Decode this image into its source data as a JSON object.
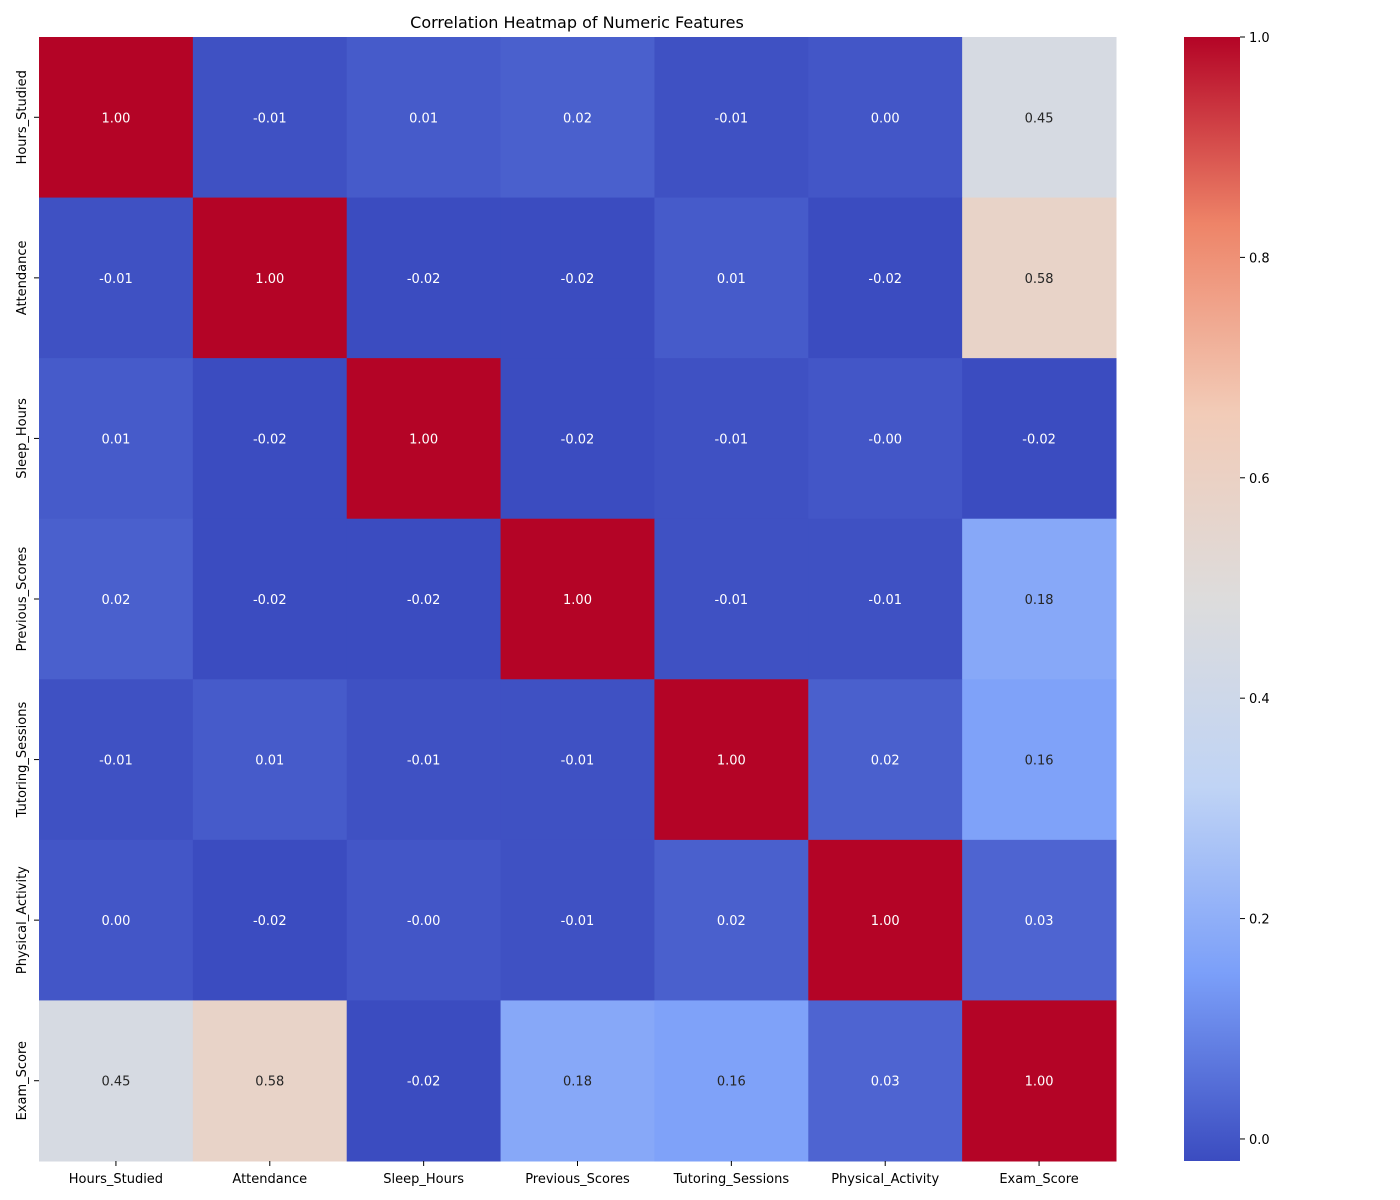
{
  "chart_data": {
    "type": "heatmap",
    "title": "Correlation Heatmap of Numeric Features",
    "xlabel": "",
    "ylabel": "",
    "x_categories": [
      "Hours_Studied",
      "Attendance",
      "Sleep_Hours",
      "Previous_Scores",
      "Tutoring_Sessions",
      "Physical_Activity",
      "Exam_Score"
    ],
    "y_categories": [
      "Hours_Studied",
      "Attendance",
      "Sleep_Hours",
      "Previous_Scores",
      "Tutoring_Sessions",
      "Physical_Activity",
      "Exam_Score"
    ],
    "values": [
      [
        1.0,
        -0.01,
        0.01,
        0.02,
        -0.01,
        0.0,
        0.45
      ],
      [
        -0.01,
        1.0,
        -0.02,
        -0.02,
        0.01,
        -0.02,
        0.58
      ],
      [
        0.01,
        -0.02,
        1.0,
        -0.02,
        -0.01,
        -0.0,
        -0.02
      ],
      [
        0.02,
        -0.02,
        -0.02,
        1.0,
        -0.01,
        -0.01,
        0.18
      ],
      [
        -0.01,
        0.01,
        -0.01,
        -0.01,
        1.0,
        0.02,
        0.16
      ],
      [
        0.0,
        -0.02,
        -0.0,
        -0.01,
        0.02,
        1.0,
        0.03
      ],
      [
        0.45,
        0.58,
        -0.02,
        0.18,
        0.16,
        0.03,
        1.0
      ]
    ],
    "value_labels": [
      [
        "1.00",
        "-0.01",
        "0.01",
        "0.02",
        "-0.01",
        "0.00",
        "0.45"
      ],
      [
        "-0.01",
        "1.00",
        "-0.02",
        "-0.02",
        "0.01",
        "-0.02",
        "0.58"
      ],
      [
        "0.01",
        "-0.02",
        "1.00",
        "-0.02",
        "-0.01",
        "-0.00",
        "-0.02"
      ],
      [
        "0.02",
        "-0.02",
        "-0.02",
        "1.00",
        "-0.01",
        "-0.01",
        "0.18"
      ],
      [
        "-0.01",
        "0.01",
        "-0.01",
        "-0.01",
        "1.00",
        "0.02",
        "0.16"
      ],
      [
        "0.00",
        "-0.02",
        "-0.00",
        "-0.01",
        "0.02",
        "1.00",
        "0.03"
      ],
      [
        "0.45",
        "0.58",
        "-0.02",
        "0.18",
        "0.16",
        "0.03",
        "1.00"
      ]
    ],
    "colorbar": {
      "colormap": "coolwarm",
      "range": [
        -0.02,
        1.0
      ],
      "ticks": [
        0.0,
        0.2,
        0.4,
        0.6,
        0.8,
        1.0
      ],
      "tick_labels": [
        "0.0",
        "0.2",
        "0.4",
        "0.6",
        "0.8",
        "1.0"
      ]
    },
    "grid": false,
    "colormap_stops": [
      "#3b4cc0",
      "#7b9ff9",
      "#c0d4f5",
      "#dddcdc",
      "#f2cbb7",
      "#ee8468",
      "#b40426"
    ]
  }
}
